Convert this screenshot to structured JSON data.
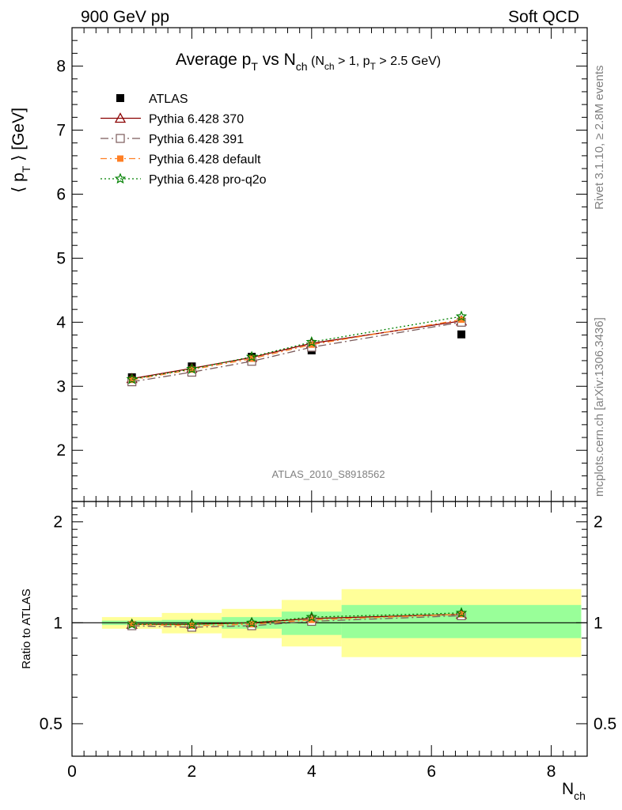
{
  "header": {
    "left": "900 GeV pp",
    "right": "Soft QCD"
  },
  "side_text": {
    "rivet": "Rivet 3.1.10, ≥ 2.8M events",
    "mcplots": "mcplots.cern.ch [arXiv:1306.3436]"
  },
  "analysis_id": "ATLAS_2010_S8918562",
  "chart_data": [
    {
      "type": "line",
      "panel": "main",
      "title": "Average p_T vs N_ch (N_ch > 1, p_T > 2.5 GeV)",
      "title_parts": {
        "main": "Average p",
        "sub1": "T",
        "mid": " vs N",
        "sub2": "ch",
        "paren1": " (N",
        "sub3": "ch",
        "paren2": " > 1, p",
        "sub4": "T",
        "paren3": " > 2.5 GeV)"
      },
      "ylabel": "⟨ p_T ⟩ [GeV]",
      "ylabel_parts": {
        "a": "⟨ p",
        "sub": "T",
        "b": " ⟩ [GeV]"
      },
      "xlabel": "N_ch",
      "xlabel_parts": {
        "main": "N",
        "sub": "ch"
      },
      "xlim": [
        0,
        8.6
      ],
      "ylim": [
        1.2,
        8.6
      ],
      "yticks": [
        "2",
        "3",
        "4",
        "5",
        "6",
        "7",
        "8"
      ],
      "xticks": [
        "0",
        "2",
        "4",
        "6",
        "8"
      ],
      "legend_position": "top-left",
      "series": [
        {
          "name": "ATLAS",
          "color": "#000000",
          "marker": "square",
          "x": [
            1,
            2,
            3,
            4,
            6.5
          ],
          "y": [
            3.14,
            3.31,
            3.46,
            3.56,
            3.81
          ]
        },
        {
          "name": "Pythia 6.428 370",
          "color": "#8b0000",
          "marker": "triangle",
          "dash": "",
          "x": [
            1,
            2,
            3,
            4,
            6.5
          ],
          "y": [
            3.12,
            3.28,
            3.45,
            3.67,
            4.02
          ]
        },
        {
          "name": "Pythia 6.428 391",
          "color": "#7b5b5b",
          "marker": "square-open",
          "dash": "10,4,2,4",
          "x": [
            1,
            2,
            3,
            4,
            6.5
          ],
          "y": [
            3.07,
            3.22,
            3.39,
            3.61,
            4.0
          ]
        },
        {
          "name": "Pythia 6.428 default",
          "color": "#ff7f24",
          "marker": "square-filled",
          "dash": "8,4,2,4",
          "x": [
            1,
            2,
            3,
            4,
            6.5
          ],
          "y": [
            3.1,
            3.26,
            3.43,
            3.65,
            4.04
          ]
        },
        {
          "name": "Pythia 6.428 pro-q2o",
          "color": "#008000",
          "marker": "star",
          "dash": "2,3",
          "x": [
            1,
            2,
            3,
            4,
            6.5
          ],
          "y": [
            3.11,
            3.27,
            3.46,
            3.69,
            4.09
          ]
        }
      ]
    },
    {
      "type": "line",
      "panel": "ratio",
      "ylabel": "Ratio to ATLAS",
      "ylim": [
        0.4,
        2.3
      ],
      "log_y": true,
      "yticks": [
        "0.5",
        "1",
        "2"
      ],
      "bands": [
        {
          "x0": 0.5,
          "x1": 1.5,
          "stat_lo": 0.985,
          "stat_hi": 1.015,
          "tot_lo": 0.96,
          "tot_hi": 1.04
        },
        {
          "x0": 1.5,
          "x1": 2.5,
          "stat_lo": 0.98,
          "stat_hi": 1.02,
          "tot_lo": 0.93,
          "tot_hi": 1.07
        },
        {
          "x0": 2.5,
          "x1": 3.5,
          "stat_lo": 0.96,
          "stat_hi": 1.04,
          "tot_lo": 0.9,
          "tot_hi": 1.1
        },
        {
          "x0": 3.5,
          "x1": 4.5,
          "stat_lo": 0.92,
          "stat_hi": 1.08,
          "tot_lo": 0.85,
          "tot_hi": 1.17
        },
        {
          "x0": 4.5,
          "x1": 8.5,
          "stat_lo": 0.9,
          "stat_hi": 1.13,
          "tot_lo": 0.79,
          "tot_hi": 1.26
        }
      ],
      "band_colors": {
        "stat": "#99ff99",
        "total": "#ffff99"
      },
      "series": [
        {
          "name": "Pythia 6.428 370",
          "x": [
            1,
            2,
            3,
            4,
            6.5
          ],
          "y": [
            0.99,
            0.99,
            1.0,
            1.03,
            1.06
          ]
        },
        {
          "name": "Pythia 6.428 391",
          "x": [
            1,
            2,
            3,
            4,
            6.5
          ],
          "y": [
            0.98,
            0.97,
            0.98,
            1.01,
            1.05
          ]
        },
        {
          "name": "Pythia 6.428 default",
          "x": [
            1,
            2,
            3,
            4,
            6.5
          ],
          "y": [
            0.99,
            0.98,
            0.99,
            1.02,
            1.06
          ]
        },
        {
          "name": "Pythia 6.428 pro-q2o",
          "x": [
            1,
            2,
            3,
            4,
            6.5
          ],
          "y": [
            0.99,
            0.99,
            1.0,
            1.04,
            1.07
          ]
        }
      ]
    }
  ]
}
